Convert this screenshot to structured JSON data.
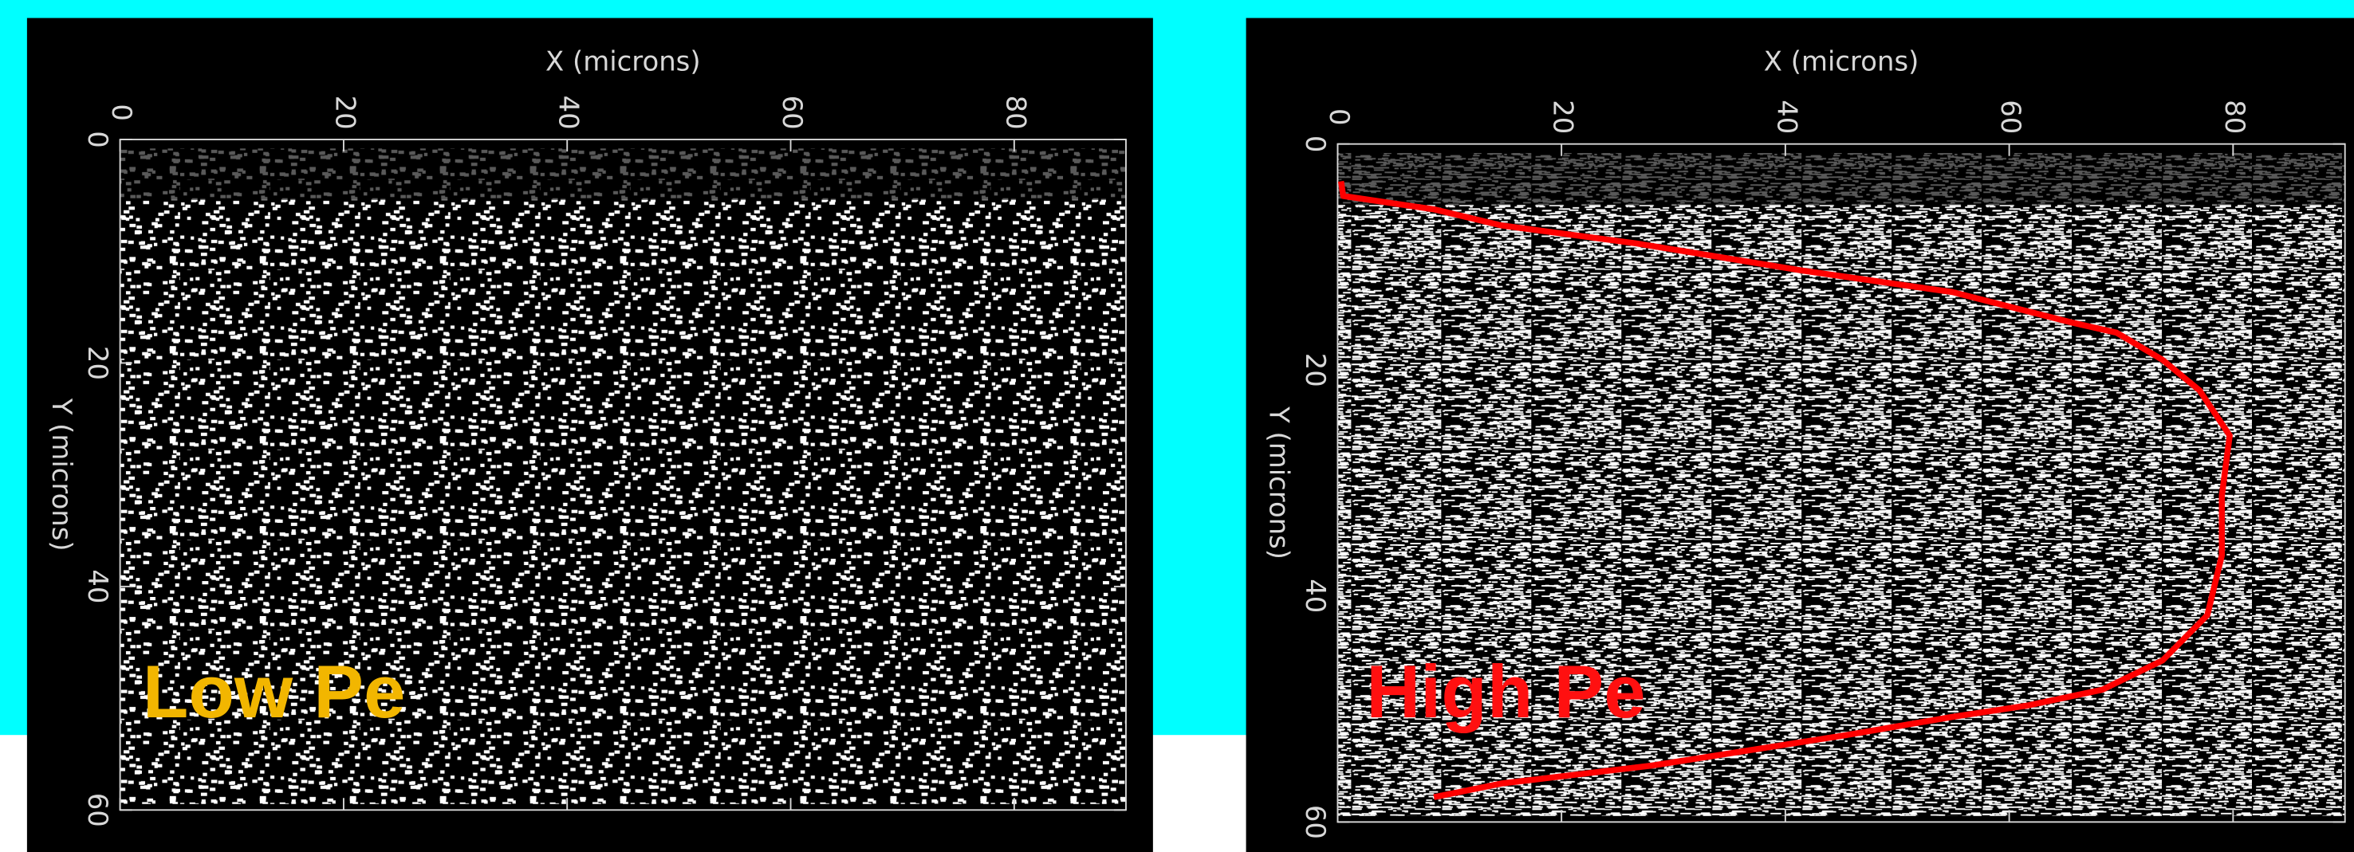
{
  "chart_data": [
    {
      "type": "scatter",
      "x_label": "X (microns)",
      "y_label": "Y (microns)",
      "xlim": [
        0,
        90
      ],
      "ylim": [
        0,
        60
      ],
      "y_inverted": true,
      "xticks": [
        0,
        20,
        40,
        60,
        80
      ],
      "yticks": [
        0,
        20,
        40,
        60
      ],
      "annotation": {
        "text": "Low Pe",
        "color": "#f2b600"
      }
    },
    {
      "type": "line",
      "x_label": "X (microns)",
      "y_label": "Y (microns)",
      "xlim": [
        0,
        90
      ],
      "ylim": [
        0,
        60
      ],
      "y_inverted": true,
      "xticks": [
        0,
        20,
        40,
        60,
        80
      ],
      "yticks": [
        0,
        20,
        40,
        60
      ],
      "color": "#ff0000",
      "x": [
        0.3,
        0.5,
        8.7,
        14.6,
        26.7,
        41.5,
        54.9,
        65.6,
        69.6,
        73.7,
        77.0,
        79.7,
        79.0,
        79.0,
        77.7,
        73.7,
        68.3,
        61.6,
        54.9,
        45.5,
        28.1,
        14.6,
        8.6
      ],
      "values": [
        3.3,
        4.6,
        5.8,
        7.2,
        8.8,
        11.2,
        13.1,
        15.8,
        16.7,
        19.1,
        21.8,
        25.8,
        31.1,
        36.4,
        41.7,
        45.7,
        48.3,
        49.7,
        50.7,
        52.3,
        55.0,
        56.6,
        57.8
      ],
      "annotation": {
        "text": "High Pe",
        "color": "#ff1010"
      }
    }
  ]
}
